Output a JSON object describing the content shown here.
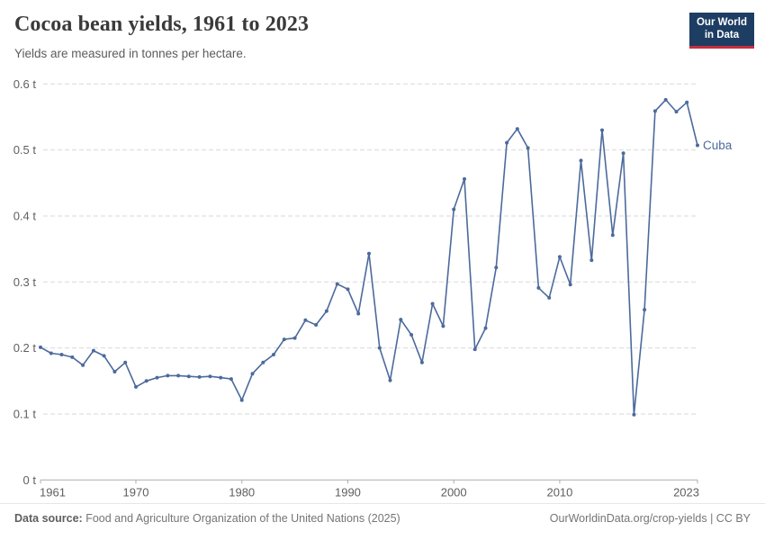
{
  "header": {
    "title": "Cocoa bean yields, 1961 to 2023",
    "subtitle": "Yields are measured in tonnes per hectare."
  },
  "logo": {
    "line1": "Our World",
    "line2": "in Data",
    "bg_color": "#1d3d63",
    "accent_color": "#c5303e"
  },
  "chart_data": {
    "type": "line",
    "title": "Cocoa bean yields, 1961 to 2023",
    "unit": "tonnes per hectare",
    "xlim": [
      1961,
      2023
    ],
    "ylim": [
      0,
      0.6
    ],
    "grid": true,
    "legend_position": "end-of-line",
    "x_ticks": [
      {
        "value": 1961,
        "label": "1961"
      },
      {
        "value": 1970,
        "label": "1970"
      },
      {
        "value": 1980,
        "label": "1980"
      },
      {
        "value": 1990,
        "label": "1990"
      },
      {
        "value": 2000,
        "label": "2000"
      },
      {
        "value": 2010,
        "label": "2010"
      },
      {
        "value": 2023,
        "label": "2023"
      }
    ],
    "y_ticks": [
      {
        "value": 0,
        "label": "0 t"
      },
      {
        "value": 0.1,
        "label": "0.1 t"
      },
      {
        "value": 0.2,
        "label": "0.2 t"
      },
      {
        "value": 0.3,
        "label": "0.3 t"
      },
      {
        "value": 0.4,
        "label": "0.4 t"
      },
      {
        "value": 0.5,
        "label": "0.5 t"
      },
      {
        "value": 0.6,
        "label": "0.6 t"
      }
    ],
    "series": [
      {
        "name": "Cuba",
        "color": "#4C6A9C",
        "years": [
          1961,
          1962,
          1963,
          1964,
          1965,
          1966,
          1967,
          1968,
          1969,
          1970,
          1971,
          1972,
          1973,
          1974,
          1975,
          1976,
          1977,
          1978,
          1979,
          1980,
          1981,
          1982,
          1983,
          1984,
          1985,
          1986,
          1987,
          1988,
          1989,
          1990,
          1991,
          1992,
          1993,
          1994,
          1995,
          1996,
          1997,
          1998,
          1999,
          2000,
          2001,
          2002,
          2003,
          2004,
          2005,
          2006,
          2007,
          2008,
          2009,
          2010,
          2011,
          2012,
          2013,
          2014,
          2015,
          2016,
          2017,
          2018,
          2019,
          2020,
          2021,
          2022,
          2023
        ],
        "values": [
          0.201,
          0.192,
          0.19,
          0.186,
          0.174,
          0.196,
          0.188,
          0.164,
          0.178,
          0.141,
          0.15,
          0.155,
          0.158,
          0.158,
          0.157,
          0.156,
          0.157,
          0.155,
          0.153,
          0.121,
          0.161,
          0.178,
          0.19,
          0.213,
          0.215,
          0.242,
          0.235,
          0.256,
          0.297,
          0.289,
          0.252,
          0.343,
          0.2,
          0.151,
          0.243,
          0.22,
          0.178,
          0.267,
          0.233,
          0.41,
          0.456,
          0.198,
          0.23,
          0.322,
          0.511,
          0.532,
          0.503,
          0.291,
          0.276,
          0.338,
          0.296,
          0.484,
          0.333,
          0.53,
          0.371,
          0.495,
          0.099,
          0.258,
          0.559,
          0.576,
          0.558,
          0.572,
          0.507
        ]
      }
    ]
  },
  "colors": {
    "gridline": "#d9d9d9",
    "axis": "#adadad",
    "tick_label": "#5f5f5f"
  },
  "footer": {
    "data_source_label": "Data source:",
    "data_source_text": " Food and Agriculture Organization of the United Nations (2025)",
    "link_text": "OurWorldinData.org/crop-yields | CC BY"
  }
}
